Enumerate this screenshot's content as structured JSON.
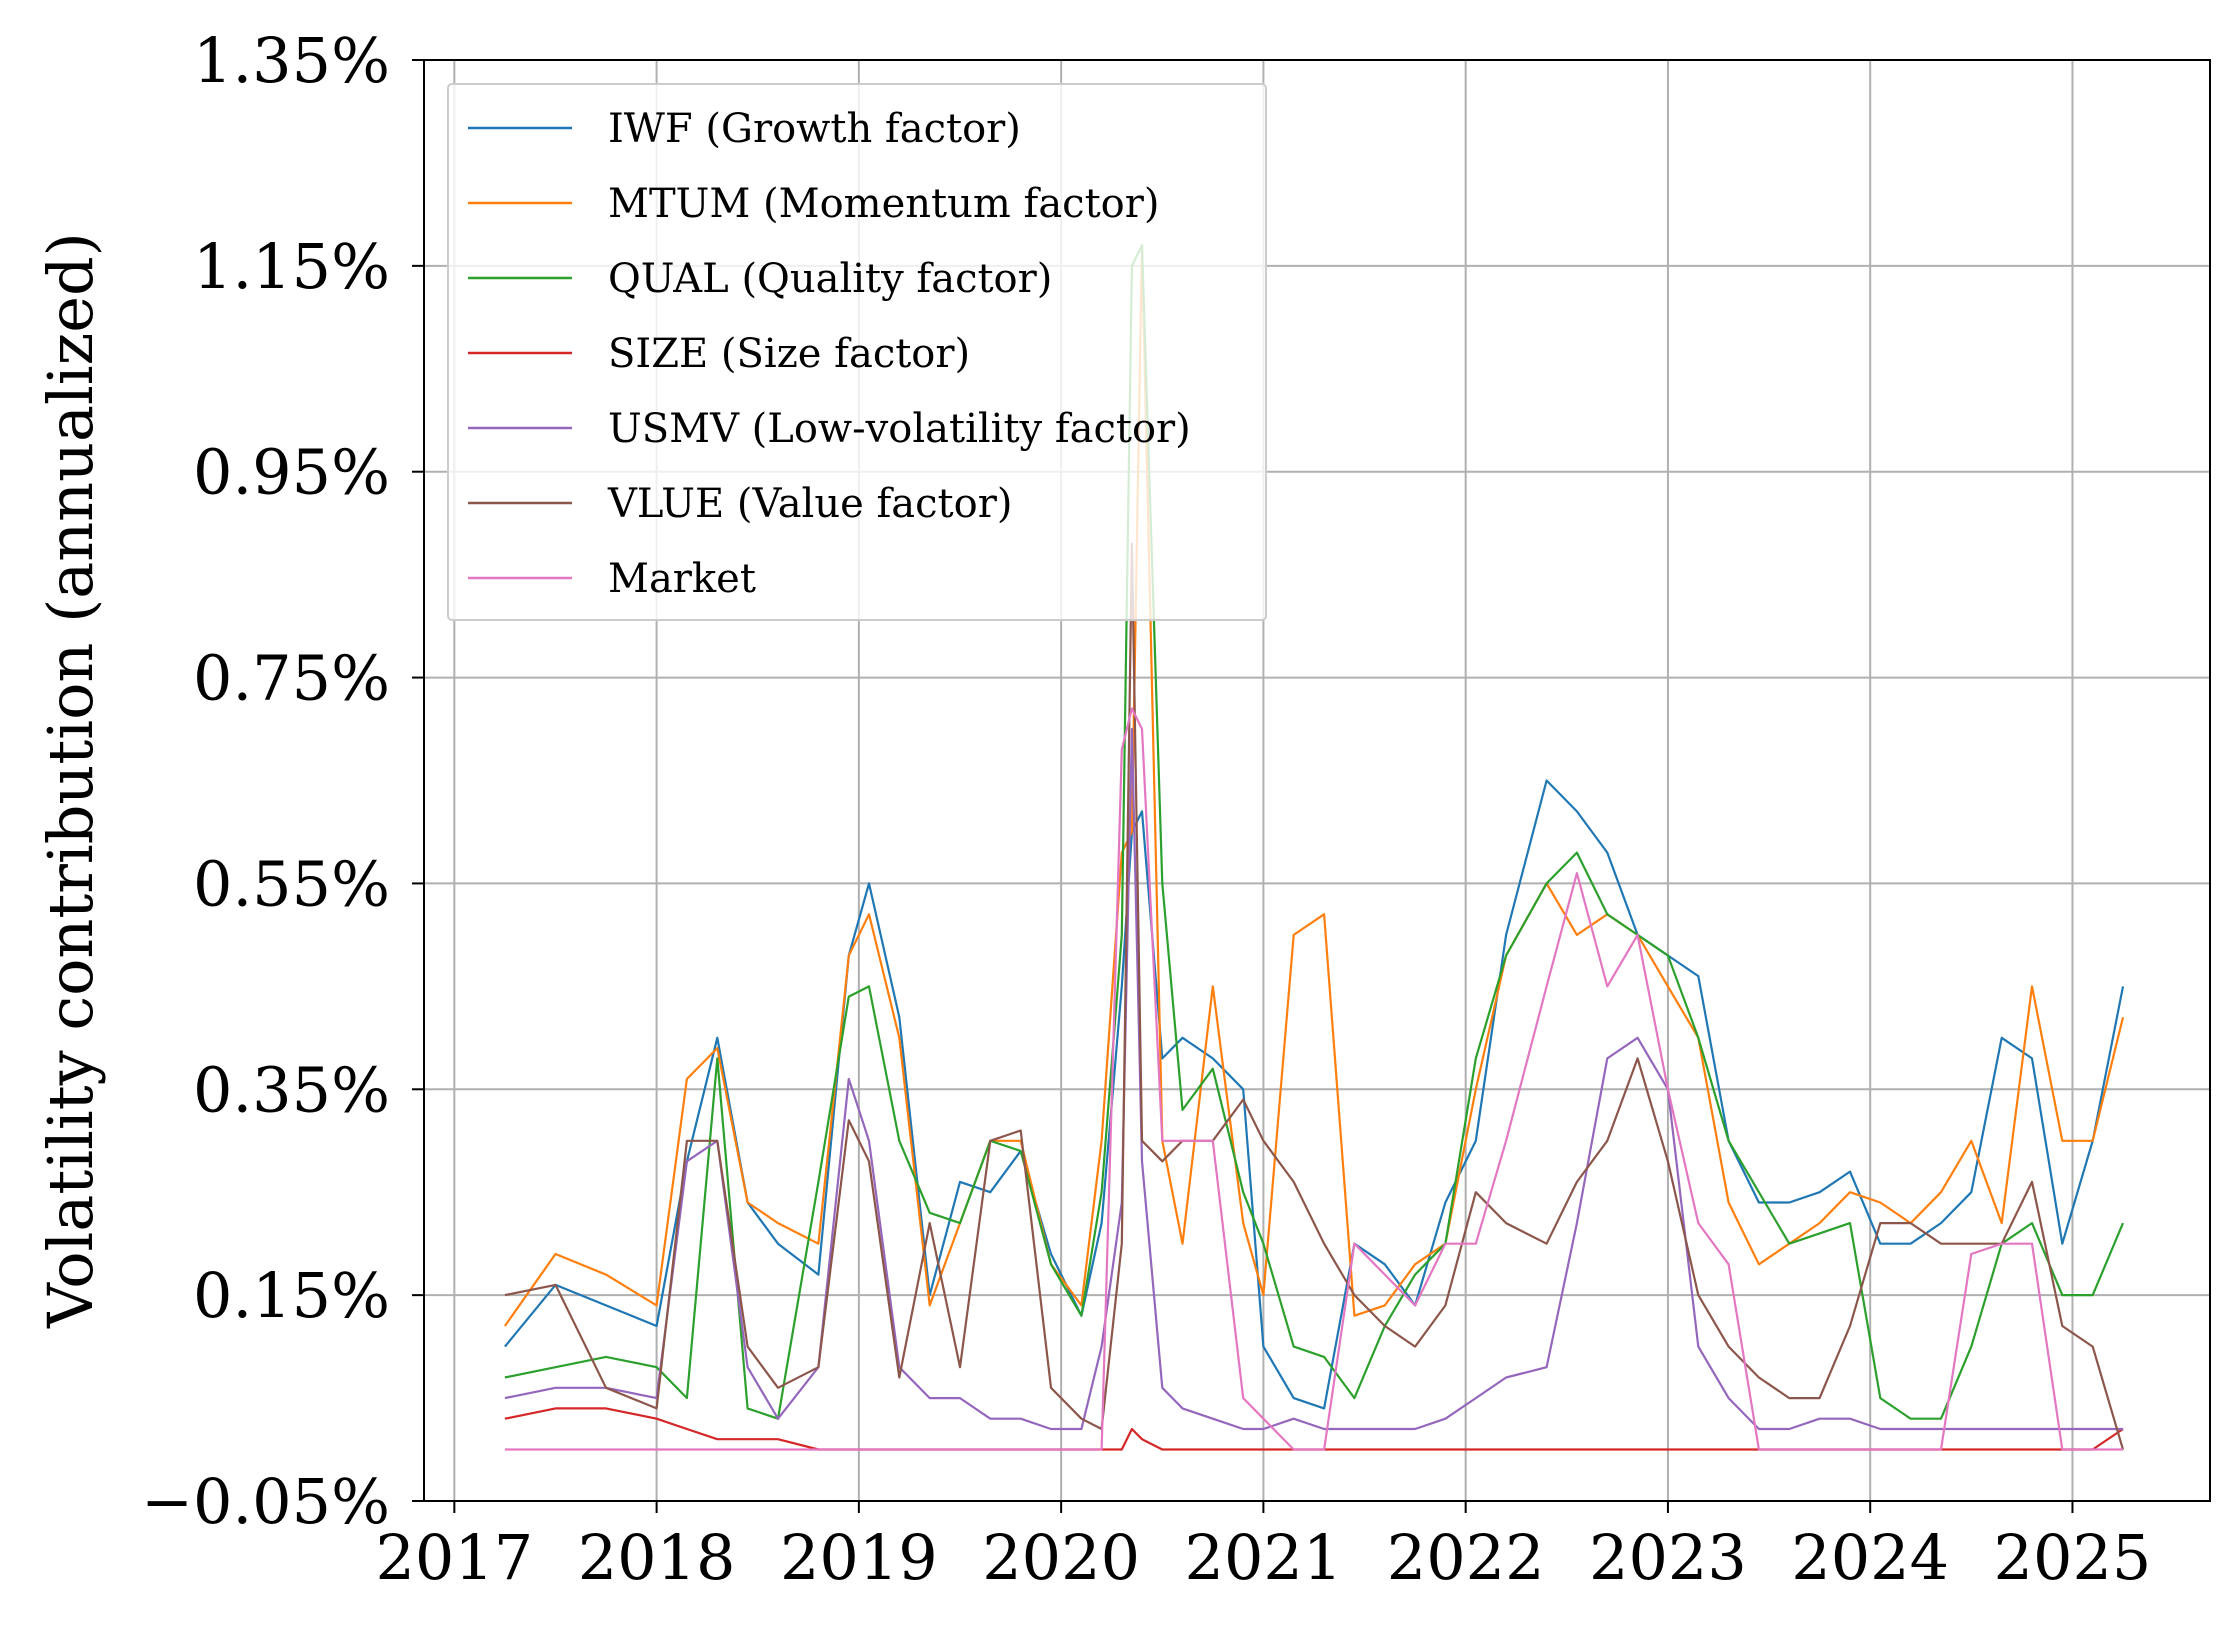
{
  "chart_data": {
    "type": "line",
    "title": "",
    "xlabel": "",
    "ylabel": "Volatility contribution (annualized)",
    "x_ticks": [
      "2017",
      "2018",
      "2019",
      "2020",
      "2021",
      "2022",
      "2023",
      "2024",
      "2025"
    ],
    "xlim": [
      2016.85,
      2025.68
    ],
    "y_ticks": [
      "−0.05%",
      "0.15%",
      "0.35%",
      "0.55%",
      "0.75%",
      "0.95%",
      "1.15%",
      "1.35%"
    ],
    "y_tick_values": [
      -0.05,
      0.15,
      0.35,
      0.55,
      0.75,
      0.95,
      1.15,
      1.35
    ],
    "ylim": [
      -0.05,
      1.35
    ],
    "grid": true,
    "legend_position": "top-left",
    "x": [
      2017.25,
      2017.5,
      2017.75,
      2018.0,
      2018.15,
      2018.3,
      2018.45,
      2018.6,
      2018.8,
      2018.95,
      2019.05,
      2019.2,
      2019.35,
      2019.5,
      2019.65,
      2019.8,
      2019.95,
      2020.1,
      2020.2,
      2020.3,
      2020.35,
      2020.4,
      2020.5,
      2020.6,
      2020.75,
      2020.9,
      2021.0,
      2021.15,
      2021.3,
      2021.45,
      2021.6,
      2021.75,
      2021.9,
      2022.05,
      2022.2,
      2022.4,
      2022.55,
      2022.7,
      2022.85,
      2023.0,
      2023.15,
      2023.3,
      2023.45,
      2023.6,
      2023.75,
      2023.9,
      2024.05,
      2024.2,
      2024.35,
      2024.5,
      2024.65,
      2024.8,
      2024.95,
      2025.1,
      2025.25
    ],
    "series": [
      {
        "name": "IWF (Growth factor)",
        "color": "#1f77b4",
        "values": [
          0.1,
          0.16,
          0.14,
          0.12,
          0.28,
          0.4,
          0.24,
          0.2,
          0.17,
          0.48,
          0.55,
          0.42,
          0.15,
          0.26,
          0.25,
          0.29,
          0.19,
          0.13,
          0.22,
          0.45,
          0.6,
          0.62,
          0.38,
          0.4,
          0.38,
          0.35,
          0.1,
          0.05,
          0.04,
          0.2,
          0.18,
          0.14,
          0.24,
          0.3,
          0.5,
          0.65,
          0.62,
          0.58,
          0.5,
          0.48,
          0.46,
          0.3,
          0.24,
          0.24,
          0.25,
          0.27,
          0.2,
          0.2,
          0.22,
          0.25,
          0.4,
          0.38,
          0.2,
          0.3,
          0.45
        ]
      },
      {
        "name": "MTUM (Momentum factor)",
        "color": "#ff7f0e",
        "values": [
          0.12,
          0.19,
          0.17,
          0.14,
          0.36,
          0.39,
          0.24,
          0.22,
          0.2,
          0.48,
          0.52,
          0.4,
          0.14,
          0.22,
          0.3,
          0.3,
          0.18,
          0.14,
          0.3,
          0.58,
          0.6,
          1.17,
          0.3,
          0.2,
          0.45,
          0.22,
          0.15,
          0.5,
          0.52,
          0.13,
          0.14,
          0.18,
          0.2,
          0.35,
          0.48,
          0.55,
          0.5,
          0.52,
          0.5,
          0.45,
          0.4,
          0.24,
          0.18,
          0.2,
          0.22,
          0.25,
          0.24,
          0.22,
          0.25,
          0.3,
          0.22,
          0.45,
          0.3,
          0.3,
          0.42
        ]
      },
      {
        "name": "QUAL (Quality factor)",
        "color": "#2ca02c",
        "values": [
          0.07,
          0.08,
          0.09,
          0.08,
          0.05,
          0.38,
          0.04,
          0.03,
          0.26,
          0.44,
          0.45,
          0.3,
          0.23,
          0.22,
          0.3,
          0.29,
          0.18,
          0.13,
          0.25,
          0.5,
          1.15,
          1.17,
          0.55,
          0.33,
          0.37,
          0.25,
          0.2,
          0.1,
          0.09,
          0.05,
          0.12,
          0.17,
          0.2,
          0.38,
          0.48,
          0.55,
          0.58,
          0.52,
          0.5,
          0.48,
          0.4,
          0.3,
          0.25,
          0.2,
          0.21,
          0.22,
          0.05,
          0.03,
          0.03,
          0.1,
          0.2,
          0.22,
          0.15,
          0.15,
          0.22
        ]
      },
      {
        "name": "SIZE (Size factor)",
        "color": "#d62728",
        "values": [
          0.03,
          0.04,
          0.04,
          0.03,
          0.02,
          0.01,
          0.01,
          0.01,
          0.0,
          0.0,
          0.0,
          0.0,
          0.0,
          0.0,
          0.0,
          0.0,
          0.0,
          0.0,
          0.0,
          0.0,
          0.02,
          0.01,
          0.0,
          0.0,
          0.0,
          0.0,
          0.0,
          0.0,
          0.0,
          0.0,
          0.0,
          0.0,
          0.0,
          0.0,
          0.0,
          0.0,
          0.0,
          0.0,
          0.0,
          0.0,
          0.0,
          0.0,
          0.0,
          0.0,
          0.0,
          0.0,
          0.0,
          0.0,
          0.0,
          0.0,
          0.0,
          0.0,
          0.0,
          0.0,
          0.02
        ]
      },
      {
        "name": "USMV (Low-volatility factor)",
        "color": "#9467bd",
        "values": [
          0.05,
          0.06,
          0.06,
          0.05,
          0.28,
          0.3,
          0.08,
          0.03,
          0.08,
          0.36,
          0.3,
          0.08,
          0.05,
          0.05,
          0.03,
          0.03,
          0.02,
          0.02,
          0.1,
          0.24,
          0.7,
          0.28,
          0.06,
          0.04,
          0.03,
          0.02,
          0.02,
          0.03,
          0.02,
          0.02,
          0.02,
          0.02,
          0.03,
          0.05,
          0.07,
          0.08,
          0.22,
          0.38,
          0.4,
          0.35,
          0.1,
          0.05,
          0.02,
          0.02,
          0.03,
          0.03,
          0.02,
          0.02,
          0.02,
          0.02,
          0.02,
          0.02,
          0.02,
          0.02,
          0.02
        ]
      },
      {
        "name": "VLUE (Value factor)",
        "color": "#8c564b",
        "values": [
          0.15,
          0.16,
          0.06,
          0.04,
          0.3,
          0.3,
          0.1,
          0.06,
          0.08,
          0.32,
          0.28,
          0.07,
          0.22,
          0.08,
          0.3,
          0.31,
          0.06,
          0.03,
          0.02,
          0.2,
          0.88,
          0.3,
          0.28,
          0.3,
          0.3,
          0.34,
          0.3,
          0.26,
          0.2,
          0.15,
          0.12,
          0.1,
          0.14,
          0.25,
          0.22,
          0.2,
          0.26,
          0.3,
          0.38,
          0.28,
          0.15,
          0.1,
          0.07,
          0.05,
          0.05,
          0.12,
          0.22,
          0.22,
          0.2,
          0.2,
          0.2,
          0.26,
          0.12,
          0.1,
          0.0
        ]
      },
      {
        "name": "Market",
        "color": "#e377c2",
        "values": [
          0.0,
          0.0,
          0.0,
          0.0,
          0.0,
          0.0,
          0.0,
          0.0,
          0.0,
          0.0,
          0.0,
          0.0,
          0.0,
          0.0,
          0.0,
          0.0,
          0.0,
          0.0,
          0.0,
          0.68,
          0.72,
          0.7,
          0.3,
          0.3,
          0.3,
          0.05,
          0.03,
          0.0,
          0.0,
          0.2,
          0.17,
          0.14,
          0.2,
          0.2,
          0.3,
          0.45,
          0.56,
          0.45,
          0.5,
          0.35,
          0.22,
          0.18,
          0.0,
          0.0,
          0.0,
          0.0,
          0.0,
          0.0,
          0.0,
          0.19,
          0.2,
          0.2,
          0.0,
          0.0,
          0.0
        ]
      }
    ]
  }
}
